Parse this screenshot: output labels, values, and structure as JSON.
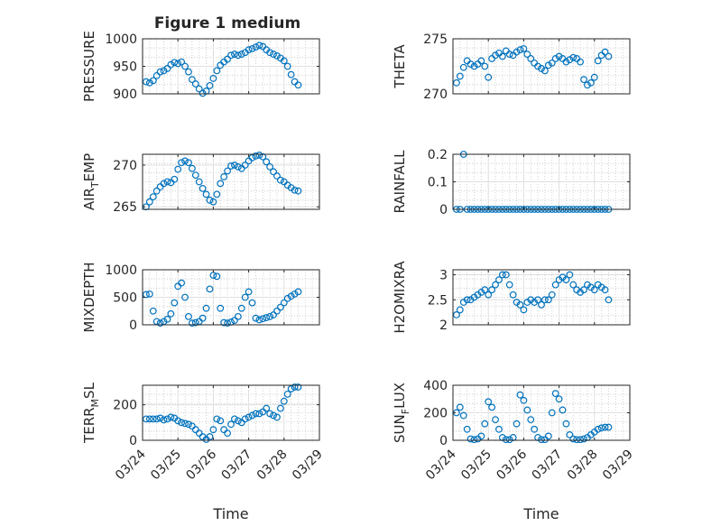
{
  "figure_title": "Figure 1 medium",
  "chart_data": [
    {
      "type": "scatter",
      "ylabel": "PRESSURE",
      "xlim": [
        "03/24",
        "03/29"
      ],
      "ylim": [
        900,
        1000
      ],
      "yticks": [
        900,
        950,
        1000
      ],
      "grid": true,
      "minor_grid": true,
      "series": [
        {
          "x": [
            0.1,
            0.2,
            0.3,
            0.4,
            0.5,
            0.6,
            0.7,
            0.8,
            0.9,
            1.0,
            1.1,
            1.2,
            1.3,
            1.4,
            1.5,
            1.6,
            1.7,
            1.8,
            1.9,
            2.0,
            2.1,
            2.2,
            2.3,
            2.4,
            2.5,
            2.6,
            2.7,
            2.8,
            2.9,
            3.0,
            3.1,
            3.2,
            3.3,
            3.4,
            3.5,
            3.6,
            3.7,
            3.8,
            3.9,
            4.0,
            4.1,
            4.2,
            4.3,
            4.4
          ],
          "y": [
            922,
            920,
            924,
            933,
            940,
            942,
            946,
            953,
            957,
            955,
            958,
            950,
            940,
            926,
            918,
            909,
            901,
            905,
            915,
            928,
            942,
            952,
            958,
            963,
            970,
            972,
            970,
            972,
            975,
            980,
            982,
            985,
            988,
            986,
            980,
            975,
            972,
            969,
            965,
            960,
            950,
            935,
            922,
            916
          ]
        }
      ]
    },
    {
      "type": "scatter",
      "ylabel": "THETA",
      "xlim": [
        "03/24",
        "03/29"
      ],
      "ylim": [
        270,
        275
      ],
      "yticks": [
        270,
        275
      ],
      "grid": true,
      "minor_grid": true,
      "series": [
        {
          "x": [
            0.1,
            0.2,
            0.3,
            0.4,
            0.5,
            0.6,
            0.7,
            0.8,
            0.9,
            1.0,
            1.1,
            1.2,
            1.3,
            1.4,
            1.5,
            1.6,
            1.7,
            1.8,
            1.9,
            2.0,
            2.1,
            2.2,
            2.3,
            2.4,
            2.5,
            2.6,
            2.7,
            2.8,
            2.9,
            3.0,
            3.1,
            3.2,
            3.3,
            3.4,
            3.5,
            3.6,
            3.7,
            3.8,
            3.9,
            4.0,
            4.1,
            4.2,
            4.3,
            4.4
          ],
          "y": [
            271,
            271.6,
            272.4,
            273,
            272.7,
            272.5,
            272.7,
            273,
            272.5,
            271.5,
            273.2,
            273.5,
            273.7,
            273.4,
            273.9,
            273.6,
            273.5,
            273.8,
            274.0,
            274.1,
            273.6,
            273.2,
            272.8,
            272.5,
            272.3,
            272.1,
            272.6,
            272.8,
            273.2,
            273.4,
            273.2,
            272.9,
            273.1,
            273.3,
            273.2,
            272.9,
            271.3,
            270.8,
            271.0,
            271.5,
            273.0,
            273.5,
            273.8,
            273.4
          ]
        }
      ]
    },
    {
      "type": "scatter",
      "ylabel": "AIR_TEMP",
      "xlim": [
        "03/24",
        "03/29"
      ],
      "ylim": [
        264.7,
        271.3
      ],
      "yticks": [
        265,
        270
      ],
      "grid": true,
      "minor_grid": true,
      "series": [
        {
          "x": [
            0.1,
            0.2,
            0.3,
            0.4,
            0.5,
            0.6,
            0.7,
            0.8,
            0.9,
            1.0,
            1.1,
            1.2,
            1.3,
            1.4,
            1.5,
            1.6,
            1.7,
            1.8,
            1.9,
            2.0,
            2.1,
            2.2,
            2.3,
            2.4,
            2.5,
            2.6,
            2.7,
            2.8,
            2.9,
            3.0,
            3.1,
            3.2,
            3.3,
            3.4,
            3.5,
            3.6,
            3.7,
            3.8,
            3.9,
            4.0,
            4.1,
            4.2,
            4.3,
            4.4
          ],
          "y": [
            265.0,
            265.6,
            266.2,
            266.9,
            267.4,
            267.8,
            268.0,
            267.9,
            268.3,
            269.5,
            270.3,
            270.5,
            270.3,
            269.6,
            268.8,
            268.0,
            267.2,
            266.5,
            265.8,
            265.6,
            266.5,
            267.8,
            268.6,
            269.3,
            269.9,
            270.0,
            269.8,
            269.6,
            270.0,
            270.5,
            270.9,
            271.1,
            271.2,
            271.0,
            270.4,
            269.8,
            269.2,
            268.7,
            268.2,
            268.0,
            267.6,
            267.3,
            267.0,
            266.9
          ]
        }
      ]
    },
    {
      "type": "scatter",
      "ylabel": "RAINFALL",
      "xlim": [
        "03/24",
        "03/29"
      ],
      "ylim": [
        0,
        0.2
      ],
      "yticks": [
        0,
        0.1,
        0.2
      ],
      "grid": true,
      "minor_grid": true,
      "series": [
        {
          "x": [
            0.1,
            0.2,
            0.3,
            0.4,
            0.5,
            0.6,
            0.7,
            0.8,
            0.9,
            1.0,
            1.1,
            1.2,
            1.3,
            1.4,
            1.5,
            1.6,
            1.7,
            1.8,
            1.9,
            2.0,
            2.1,
            2.2,
            2.3,
            2.4,
            2.5,
            2.6,
            2.7,
            2.8,
            2.9,
            3.0,
            3.1,
            3.2,
            3.3,
            3.4,
            3.5,
            3.6,
            3.7,
            3.8,
            3.9,
            4.0,
            4.1,
            4.2,
            4.3,
            4.4
          ],
          "y": [
            0,
            0,
            0.2,
            0,
            0,
            0,
            0,
            0,
            0,
            0,
            0,
            0,
            0,
            0,
            0,
            0,
            0,
            0,
            0,
            0,
            0,
            0,
            0,
            0,
            0,
            0,
            0,
            0,
            0,
            0,
            0,
            0,
            0,
            0,
            0,
            0,
            0,
            0,
            0,
            0,
            0,
            0,
            0,
            0
          ]
        }
      ]
    },
    {
      "type": "scatter",
      "ylabel": "MIXDEPTH",
      "xlim": [
        "03/24",
        "03/29"
      ],
      "ylim": [
        0,
        1000
      ],
      "yticks": [
        0,
        500,
        1000
      ],
      "grid": true,
      "minor_grid": true,
      "series": [
        {
          "x": [
            0.1,
            0.2,
            0.3,
            0.4,
            0.5,
            0.6,
            0.7,
            0.8,
            0.9,
            1.0,
            1.1,
            1.2,
            1.3,
            1.4,
            1.5,
            1.6,
            1.7,
            1.8,
            1.9,
            2.0,
            2.1,
            2.2,
            2.3,
            2.4,
            2.5,
            2.6,
            2.7,
            2.8,
            2.9,
            3.0,
            3.1,
            3.2,
            3.3,
            3.4,
            3.5,
            3.6,
            3.7,
            3.8,
            3.9,
            4.0,
            4.1,
            4.2,
            4.3,
            4.4
          ],
          "y": [
            550,
            560,
            250,
            60,
            30,
            60,
            100,
            200,
            400,
            700,
            760,
            500,
            150,
            30,
            40,
            60,
            120,
            300,
            650,
            900,
            880,
            300,
            40,
            30,
            50,
            80,
            150,
            300,
            500,
            600,
            400,
            120,
            90,
            110,
            130,
            150,
            180,
            250,
            320,
            400,
            480,
            520,
            560,
            600
          ]
        }
      ]
    },
    {
      "type": "scatter",
      "ylabel": "H2OMIXRA",
      "xlim": [
        "03/24",
        "03/29"
      ],
      "ylim": [
        2,
        3.1
      ],
      "yticks": [
        2,
        2.5,
        3
      ],
      "grid": true,
      "minor_grid": true,
      "series": [
        {
          "x": [
            0.1,
            0.2,
            0.3,
            0.4,
            0.5,
            0.6,
            0.7,
            0.8,
            0.9,
            1.0,
            1.1,
            1.2,
            1.3,
            1.4,
            1.5,
            1.6,
            1.7,
            1.8,
            1.9,
            2.0,
            2.1,
            2.2,
            2.3,
            2.4,
            2.5,
            2.6,
            2.7,
            2.8,
            2.9,
            3.0,
            3.1,
            3.2,
            3.3,
            3.4,
            3.5,
            3.6,
            3.7,
            3.8,
            3.9,
            4.0,
            4.1,
            4.2,
            4.3,
            4.4
          ],
          "y": [
            2.2,
            2.3,
            2.45,
            2.5,
            2.5,
            2.55,
            2.6,
            2.65,
            2.7,
            2.6,
            2.7,
            2.8,
            2.9,
            3.0,
            3.0,
            2.8,
            2.6,
            2.45,
            2.4,
            2.3,
            2.45,
            2.5,
            2.45,
            2.5,
            2.4,
            2.5,
            2.5,
            2.6,
            2.8,
            2.9,
            2.95,
            2.9,
            3.0,
            2.8,
            2.7,
            2.65,
            2.7,
            2.8,
            2.75,
            2.7,
            2.8,
            2.75,
            2.7,
            2.5
          ]
        }
      ]
    },
    {
      "type": "scatter",
      "ylabel": "TERR_MSL",
      "xlim": [
        "03/24",
        "03/29"
      ],
      "ylim": [
        0,
        310
      ],
      "yticks": [
        0,
        200
      ],
      "grid": true,
      "minor_grid": true,
      "series": [
        {
          "x": [
            0.1,
            0.2,
            0.3,
            0.4,
            0.5,
            0.6,
            0.7,
            0.8,
            0.9,
            1.0,
            1.1,
            1.2,
            1.3,
            1.4,
            1.5,
            1.6,
            1.7,
            1.8,
            1.9,
            2.0,
            2.1,
            2.2,
            2.3,
            2.4,
            2.5,
            2.6,
            2.7,
            2.8,
            2.9,
            3.0,
            3.1,
            3.2,
            3.3,
            3.4,
            3.5,
            3.6,
            3.7,
            3.8,
            3.9,
            4.0,
            4.1,
            4.2,
            4.3,
            4.4
          ],
          "y": [
            120,
            120,
            120,
            120,
            125,
            115,
            120,
            130,
            125,
            110,
            100,
            95,
            90,
            80,
            60,
            40,
            20,
            5,
            20,
            60,
            120,
            110,
            60,
            40,
            90,
            120,
            110,
            100,
            120,
            130,
            140,
            150,
            150,
            160,
            180,
            150,
            140,
            130,
            180,
            220,
            260,
            290,
            300,
            300
          ]
        }
      ]
    },
    {
      "type": "scatter",
      "ylabel": "SUN_FLUX",
      "xlim": [
        "03/24",
        "03/29"
      ],
      "ylim": [
        0,
        400
      ],
      "yticks": [
        0,
        200,
        400
      ],
      "grid": true,
      "minor_grid": true,
      "series": [
        {
          "x": [
            0.1,
            0.2,
            0.3,
            0.4,
            0.5,
            0.6,
            0.7,
            0.8,
            0.9,
            1.0,
            1.1,
            1.2,
            1.3,
            1.4,
            1.5,
            1.6,
            1.7,
            1.8,
            1.9,
            2.0,
            2.1,
            2.2,
            2.3,
            2.4,
            2.5,
            2.6,
            2.7,
            2.8,
            2.9,
            3.0,
            3.1,
            3.2,
            3.3,
            3.4,
            3.5,
            3.6,
            3.7,
            3.8,
            3.9,
            4.0,
            4.1,
            4.2,
            4.3,
            4.4
          ],
          "y": [
            200,
            240,
            180,
            80,
            10,
            5,
            10,
            30,
            120,
            280,
            240,
            150,
            80,
            20,
            5,
            5,
            20,
            120,
            330,
            290,
            220,
            150,
            80,
            20,
            5,
            5,
            30,
            200,
            340,
            300,
            220,
            120,
            40,
            10,
            5,
            5,
            10,
            20,
            40,
            60,
            80,
            90,
            95,
            95
          ]
        }
      ]
    }
  ],
  "xticklabels": [
    "03/24",
    "03/25",
    "03/26",
    "03/27",
    "03/28",
    "03/29"
  ],
  "xlabel": "Time",
  "colors": {
    "marker": "#0072BD",
    "axis": "#262626",
    "grid": "#dfdfdf"
  }
}
